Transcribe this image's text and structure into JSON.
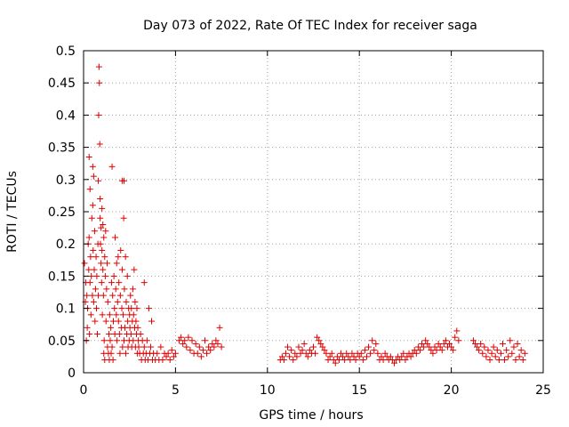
{
  "chart_data": {
    "type": "scatter",
    "title": "Day 073 of 2022, Rate Of TEC Index for receiver saga",
    "xlabel": "GPS time / hours",
    "ylabel": "ROTI / TECUs",
    "xlim": [
      0,
      25
    ],
    "ylim": [
      0,
      0.5
    ],
    "x_ticks": [
      0,
      5,
      10,
      15,
      20,
      25
    ],
    "x_tick_labels": [
      "0",
      "5",
      "10",
      "15",
      "20",
      "25"
    ],
    "y_ticks": [
      0,
      0.05,
      0.1,
      0.15,
      0.2,
      0.25,
      0.3,
      0.35,
      0.4,
      0.45,
      0.5
    ],
    "y_tick_labels": [
      "0",
      "0.05",
      "0.1",
      "0.15",
      "0.2",
      "0.25",
      "0.3",
      "0.35",
      "0.4",
      "0.45",
      "0.5"
    ],
    "grid": true,
    "marker": "+",
    "marker_color": "#e00000",
    "series": [
      {
        "name": "ROTI",
        "points": [
          [
            0.05,
            0.17
          ],
          [
            0.1,
            0.11
          ],
          [
            0.12,
            0.14
          ],
          [
            0.15,
            0.05
          ],
          [
            0.18,
            0.12
          ],
          [
            0.2,
            0.07
          ],
          [
            0.22,
            0.1
          ],
          [
            0.25,
            0.2
          ],
          [
            0.28,
            0.16
          ],
          [
            0.3,
            0.21
          ],
          [
            0.3,
            0.335
          ],
          [
            0.32,
            0.06
          ],
          [
            0.35,
            0.14
          ],
          [
            0.35,
            0.285
          ],
          [
            0.38,
            0.18
          ],
          [
            0.4,
            0.09
          ],
          [
            0.42,
            0.15
          ],
          [
            0.45,
            0.24
          ],
          [
            0.48,
            0.12
          ],
          [
            0.5,
            0.26
          ],
          [
            0.5,
            0.32
          ],
          [
            0.52,
            0.19
          ],
          [
            0.55,
            0.11
          ],
          [
            0.55,
            0.305
          ],
          [
            0.58,
            0.16
          ],
          [
            0.6,
            0.22
          ],
          [
            0.62,
            0.08
          ],
          [
            0.65,
            0.13
          ],
          [
            0.68,
            0.18
          ],
          [
            0.7,
            0.1
          ],
          [
            0.72,
            0.15
          ],
          [
            0.75,
            0.06
          ],
          [
            0.78,
            0.2
          ],
          [
            0.8,
            0.12
          ],
          [
            0.8,
            0.298
          ],
          [
            0.82,
            0.4
          ],
          [
            0.84,
            0.475
          ],
          [
            0.86,
            0.45
          ],
          [
            0.88,
            0.355
          ],
          [
            0.9,
            0.24
          ],
          [
            0.9,
            0.27
          ],
          [
            0.92,
            0.2
          ],
          [
            0.95,
            0.17
          ],
          [
            0.95,
            0.225
          ],
          [
            0.98,
            0.14
          ],
          [
            1.0,
            0.19
          ],
          [
            1.0,
            0.255
          ],
          [
            1.02,
            0.09
          ],
          [
            1.05,
            0.16
          ],
          [
            1.05,
            0.23
          ],
          [
            1.08,
            0.12
          ],
          [
            1.1,
            0.21
          ],
          [
            1.1,
            0.03
          ],
          [
            1.12,
            0.05
          ],
          [
            1.15,
            0.18
          ],
          [
            1.15,
            0.02
          ],
          [
            1.18,
            0.15
          ],
          [
            1.2,
            0.22
          ],
          [
            1.22,
            0.08
          ],
          [
            1.25,
            0.13
          ],
          [
            1.28,
            0.17
          ],
          [
            1.3,
            0.04
          ],
          [
            1.32,
            0.11
          ],
          [
            1.35,
            0.03
          ],
          [
            1.38,
            0.06
          ],
          [
            1.4,
            0.02
          ],
          [
            1.42,
            0.09
          ],
          [
            1.45,
            0.05
          ],
          [
            1.48,
            0.07
          ],
          [
            1.5,
            0.03
          ],
          [
            1.52,
            0.14
          ],
          [
            1.55,
            0.04
          ],
          [
            1.55,
            0.32
          ],
          [
            1.58,
            0.12
          ],
          [
            1.6,
            0.02
          ],
          [
            1.62,
            0.08
          ],
          [
            1.65,
            0.15
          ],
          [
            1.68,
            0.1
          ],
          [
            1.7,
            0.06
          ],
          [
            1.72,
            0.21
          ],
          [
            1.75,
            0.13
          ],
          [
            1.78,
            0.09
          ],
          [
            1.8,
            0.17
          ],
          [
            1.82,
            0.05
          ],
          [
            1.85,
            0.11
          ],
          [
            1.88,
            0.18
          ],
          [
            1.9,
            0.08
          ],
          [
            1.92,
            0.14
          ],
          [
            1.95,
            0.06
          ],
          [
            1.98,
            0.03
          ],
          [
            2.0,
            0.12
          ],
          [
            2.02,
            0.19
          ],
          [
            2.05,
            0.07
          ],
          [
            2.08,
            0.1
          ],
          [
            2.1,
            0.16
          ],
          [
            2.1,
            0.298
          ],
          [
            2.12,
            0.04
          ],
          [
            2.15,
            0.09
          ],
          [
            2.18,
            0.24
          ],
          [
            2.2,
            0.05
          ],
          [
            2.2,
            0.298
          ],
          [
            2.22,
            0.13
          ],
          [
            2.25,
            0.07
          ],
          [
            2.28,
            0.18
          ],
          [
            2.3,
            0.03
          ],
          [
            2.32,
            0.11
          ],
          [
            2.35,
            0.06
          ],
          [
            2.38,
            0.15
          ],
          [
            2.4,
            0.08
          ],
          [
            2.42,
            0.04
          ],
          [
            2.45,
            0.1
          ],
          [
            2.48,
            0.05
          ],
          [
            2.5,
            0.09
          ],
          [
            2.52,
            0.07
          ],
          [
            2.55,
            0.12
          ],
          [
            2.58,
            0.06
          ],
          [
            2.6,
            0.1
          ],
          [
            2.62,
            0.04
          ],
          [
            2.65,
            0.08
          ],
          [
            2.68,
            0.13
          ],
          [
            2.7,
            0.05
          ],
          [
            2.72,
            0.09
          ],
          [
            2.75,
            0.16
          ],
          [
            2.78,
            0.07
          ],
          [
            2.8,
            0.11
          ],
          [
            2.82,
            0.04
          ],
          [
            2.85,
            0.08
          ],
          [
            2.88,
            0.06
          ],
          [
            2.9,
            0.1
          ],
          [
            2.92,
            0.03
          ],
          [
            2.95,
            0.07
          ],
          [
            2.98,
            0.05
          ],
          [
            3.0,
            0.04
          ],
          [
            3.05,
            0.03
          ],
          [
            3.1,
            0.06
          ],
          [
            3.15,
            0.02
          ],
          [
            3.2,
            0.05
          ],
          [
            3.25,
            0.03
          ],
          [
            3.3,
            0.04
          ],
          [
            3.3,
            0.14
          ],
          [
            3.35,
            0.02
          ],
          [
            3.4,
            0.03
          ],
          [
            3.45,
            0.05
          ],
          [
            3.5,
            0.02
          ],
          [
            3.55,
            0.1
          ],
          [
            3.6,
            0.03
          ],
          [
            3.65,
            0.04
          ],
          [
            3.7,
            0.08
          ],
          [
            3.75,
            0.02
          ],
          [
            3.8,
            0.03
          ],
          [
            3.9,
            0.02
          ],
          [
            4.0,
            0.03
          ],
          [
            4.1,
            0.02
          ],
          [
            4.2,
            0.04
          ],
          [
            4.3,
            0.02
          ],
          [
            4.4,
            0.03
          ],
          [
            4.5,
            0.025
          ],
          [
            4.6,
            0.03
          ],
          [
            4.7,
            0.02
          ],
          [
            4.8,
            0.035
          ],
          [
            4.9,
            0.025
          ],
          [
            5.0,
            0.03
          ],
          [
            5.2,
            0.05
          ],
          [
            5.3,
            0.055
          ],
          [
            5.4,
            0.045
          ],
          [
            5.5,
            0.05
          ],
          [
            5.6,
            0.04
          ],
          [
            5.7,
            0.055
          ],
          [
            5.8,
            0.035
          ],
          [
            5.9,
            0.05
          ],
          [
            6.0,
            0.03
          ],
          [
            6.1,
            0.045
          ],
          [
            6.2,
            0.03
          ],
          [
            6.3,
            0.04
          ],
          [
            6.4,
            0.025
          ],
          [
            6.5,
            0.035
          ],
          [
            6.6,
            0.05
          ],
          [
            6.7,
            0.03
          ],
          [
            6.8,
            0.04
          ],
          [
            6.9,
            0.035
          ],
          [
            7.0,
            0.045
          ],
          [
            7.1,
            0.04
          ],
          [
            7.2,
            0.05
          ],
          [
            7.3,
            0.045
          ],
          [
            7.4,
            0.07
          ],
          [
            7.5,
            0.04
          ],
          [
            10.7,
            0.02
          ],
          [
            10.8,
            0.025
          ],
          [
            10.9,
            0.02
          ],
          [
            11.0,
            0.03
          ],
          [
            11.1,
            0.04
          ],
          [
            11.2,
            0.025
          ],
          [
            11.3,
            0.035
          ],
          [
            11.4,
            0.02
          ],
          [
            11.5,
            0.03
          ],
          [
            11.6,
            0.025
          ],
          [
            11.7,
            0.04
          ],
          [
            11.8,
            0.03
          ],
          [
            11.9,
            0.035
          ],
          [
            12.0,
            0.045
          ],
          [
            12.1,
            0.03
          ],
          [
            12.2,
            0.025
          ],
          [
            12.3,
            0.035
          ],
          [
            12.4,
            0.03
          ],
          [
            12.5,
            0.04
          ],
          [
            12.6,
            0.03
          ],
          [
            12.7,
            0.055
          ],
          [
            12.8,
            0.05
          ],
          [
            12.9,
            0.045
          ],
          [
            13.0,
            0.04
          ],
          [
            13.1,
            0.035
          ],
          [
            13.2,
            0.03
          ],
          [
            13.3,
            0.02
          ],
          [
            13.4,
            0.025
          ],
          [
            13.5,
            0.03
          ],
          [
            13.6,
            0.02
          ],
          [
            13.7,
            0.015
          ],
          [
            13.8,
            0.025
          ],
          [
            13.9,
            0.02
          ],
          [
            14.0,
            0.03
          ],
          [
            14.1,
            0.025
          ],
          [
            14.2,
            0.02
          ],
          [
            14.3,
            0.03
          ],
          [
            14.4,
            0.025
          ],
          [
            14.5,
            0.02
          ],
          [
            14.6,
            0.03
          ],
          [
            14.7,
            0.025
          ],
          [
            14.8,
            0.02
          ],
          [
            14.9,
            0.03
          ],
          [
            15.0,
            0.025
          ],
          [
            15.1,
            0.03
          ],
          [
            15.2,
            0.02
          ],
          [
            15.3,
            0.035
          ],
          [
            15.4,
            0.025
          ],
          [
            15.5,
            0.04
          ],
          [
            15.6,
            0.03
          ],
          [
            15.7,
            0.05
          ],
          [
            15.8,
            0.035
          ],
          [
            15.9,
            0.045
          ],
          [
            16.0,
            0.03
          ],
          [
            16.1,
            0.02
          ],
          [
            16.2,
            0.025
          ],
          [
            16.3,
            0.02
          ],
          [
            16.4,
            0.03
          ],
          [
            16.5,
            0.025
          ],
          [
            16.6,
            0.02
          ],
          [
            16.7,
            0.025
          ],
          [
            16.8,
            0.02
          ],
          [
            16.9,
            0.015
          ],
          [
            17.0,
            0.02
          ],
          [
            17.1,
            0.025
          ],
          [
            17.2,
            0.02
          ],
          [
            17.3,
            0.025
          ],
          [
            17.4,
            0.03
          ],
          [
            17.5,
            0.02
          ],
          [
            17.6,
            0.025
          ],
          [
            17.7,
            0.03
          ],
          [
            17.8,
            0.025
          ],
          [
            17.9,
            0.03
          ],
          [
            18.0,
            0.035
          ],
          [
            18.1,
            0.03
          ],
          [
            18.2,
            0.04
          ],
          [
            18.3,
            0.035
          ],
          [
            18.4,
            0.045
          ],
          [
            18.5,
            0.04
          ],
          [
            18.6,
            0.05
          ],
          [
            18.7,
            0.045
          ],
          [
            18.8,
            0.04
          ],
          [
            18.9,
            0.035
          ],
          [
            19.0,
            0.03
          ],
          [
            19.1,
            0.04
          ],
          [
            19.2,
            0.035
          ],
          [
            19.3,
            0.045
          ],
          [
            19.4,
            0.04
          ],
          [
            19.5,
            0.035
          ],
          [
            19.6,
            0.045
          ],
          [
            19.7,
            0.05
          ],
          [
            19.8,
            0.04
          ],
          [
            19.9,
            0.045
          ],
          [
            20.0,
            0.04
          ],
          [
            20.1,
            0.035
          ],
          [
            20.2,
            0.055
          ],
          [
            20.3,
            0.065
          ],
          [
            20.4,
            0.05
          ],
          [
            21.2,
            0.05
          ],
          [
            21.3,
            0.045
          ],
          [
            21.4,
            0.04
          ],
          [
            21.5,
            0.035
          ],
          [
            21.6,
            0.045
          ],
          [
            21.7,
            0.03
          ],
          [
            21.8,
            0.04
          ],
          [
            21.9,
            0.025
          ],
          [
            22.0,
            0.035
          ],
          [
            22.1,
            0.02
          ],
          [
            22.2,
            0.03
          ],
          [
            22.3,
            0.04
          ],
          [
            22.4,
            0.025
          ],
          [
            22.5,
            0.035
          ],
          [
            22.6,
            0.02
          ],
          [
            22.7,
            0.03
          ],
          [
            22.8,
            0.045
          ],
          [
            22.9,
            0.02
          ],
          [
            23.0,
            0.035
          ],
          [
            23.1,
            0.025
          ],
          [
            23.2,
            0.05
          ],
          [
            23.3,
            0.03
          ],
          [
            23.4,
            0.04
          ],
          [
            23.5,
            0.02
          ],
          [
            23.6,
            0.045
          ],
          [
            23.7,
            0.025
          ],
          [
            23.8,
            0.035
          ],
          [
            23.9,
            0.02
          ],
          [
            24.0,
            0.03
          ]
        ]
      }
    ]
  }
}
